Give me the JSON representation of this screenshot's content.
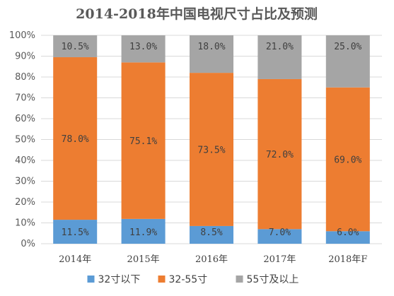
{
  "chart_data": {
    "type": "bar",
    "stacked": true,
    "title": "2014-2018年中国电视尺寸占比及预测",
    "xlabel": "",
    "ylabel": "",
    "categories": [
      "2014年",
      "2015年",
      "2016年",
      "2017年",
      "2018年F"
    ],
    "yticks": [
      "0%",
      "10%",
      "20%",
      "30%",
      "40%",
      "50%",
      "60%",
      "70%",
      "80%",
      "90%",
      "100%"
    ],
    "ylim": [
      0,
      100
    ],
    "grid": true,
    "legend_position": "bottom",
    "series": [
      {
        "name": "32寸以下",
        "color": "#5b9bd5",
        "values": [
          11.5,
          11.9,
          8.5,
          7.0,
          6.0
        ],
        "labels": [
          "11.5%",
          "11.9%",
          "8.5%",
          "7.0%",
          "6.0%"
        ]
      },
      {
        "name": "32-55寸",
        "color": "#ed7d31",
        "values": [
          78.0,
          75.1,
          73.5,
          72.0,
          69.0
        ],
        "labels": [
          "78.0%",
          "75.1%",
          "73.5%",
          "72.0%",
          "69.0%"
        ]
      },
      {
        "name": "55寸及以上",
        "color": "#a5a5a5",
        "values": [
          10.5,
          13.0,
          18.0,
          21.0,
          25.0
        ],
        "labels": [
          "10.5%",
          "13.0%",
          "18.0%",
          "21.0%",
          "25.0%"
        ]
      }
    ]
  }
}
